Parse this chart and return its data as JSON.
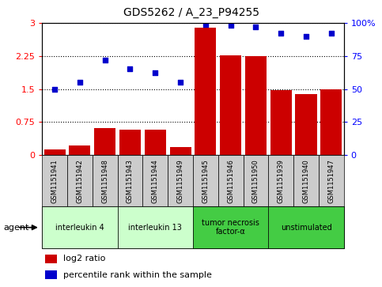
{
  "title": "GDS5262 / A_23_P94255",
  "samples": [
    "GSM1151941",
    "GSM1151942",
    "GSM1151948",
    "GSM1151943",
    "GSM1151944",
    "GSM1151949",
    "GSM1151945",
    "GSM1151946",
    "GSM1151950",
    "GSM1151939",
    "GSM1151940",
    "GSM1151947"
  ],
  "log2_ratio": [
    0.12,
    0.22,
    0.62,
    0.58,
    0.58,
    0.18,
    2.9,
    2.27,
    2.25,
    1.47,
    1.38,
    1.5
  ],
  "percentile": [
    50,
    55,
    72,
    65,
    62,
    55,
    99,
    98,
    97,
    92,
    90,
    92
  ],
  "ylim_left": [
    0,
    3
  ],
  "ylim_right": [
    0,
    100
  ],
  "yticks_left": [
    0,
    0.75,
    1.5,
    2.25,
    3
  ],
  "yticks_right": [
    0,
    25,
    50,
    75,
    100
  ],
  "bar_color": "#cc0000",
  "scatter_color": "#0000cc",
  "groups": [
    {
      "label": "interleukin 4",
      "start": 0,
      "end": 2,
      "color": "#ccffcc"
    },
    {
      "label": "interleukin 13",
      "start": 3,
      "end": 5,
      "color": "#ccffcc"
    },
    {
      "label": "tumor necrosis\nfactor-α",
      "start": 6,
      "end": 8,
      "color": "#44cc44"
    },
    {
      "label": "unstimulated",
      "start": 9,
      "end": 11,
      "color": "#44cc44"
    }
  ],
  "agent_label": "agent",
  "legend_bar_label": "log2 ratio",
  "legend_scatter_label": "percentile rank within the sample",
  "background_color": "#ffffff",
  "sample_box_color": "#cccccc",
  "group_border_color": "#000000",
  "overall_border_color": "#000000"
}
